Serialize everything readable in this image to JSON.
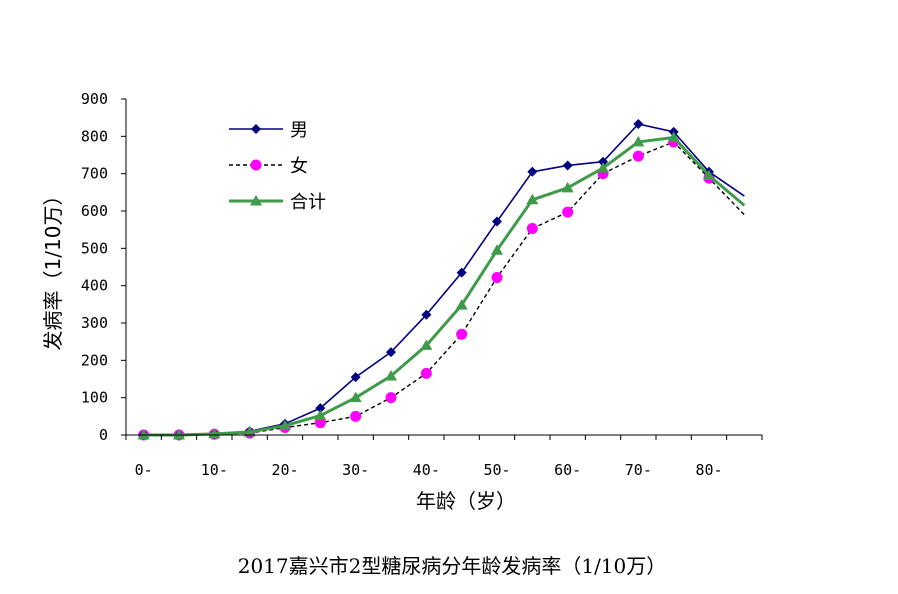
{
  "chart_data": {
    "type": "line",
    "title": "",
    "caption": "2017嘉兴市2型糖尿病分年龄发病率（1/10万）",
    "xlabel": "年龄（岁）",
    "ylabel": "发病率（1/10万）",
    "ylim": [
      0,
      900
    ],
    "yticks": [
      "0",
      "100",
      "200",
      "300",
      "400",
      "500",
      "600",
      "700",
      "800",
      "900"
    ],
    "x": [
      "0-",
      "5-",
      "10-",
      "15-",
      "20-",
      "25-",
      "30-",
      "35-",
      "40-",
      "45-",
      "50-",
      "55-",
      "60-",
      "65-",
      "70-",
      "75-",
      "80-",
      "85-"
    ],
    "xtick_labels": [
      "0-",
      "10-",
      "20-",
      "30-",
      "40-",
      "50-",
      "60-",
      "70-",
      "80-"
    ],
    "legend_position": "top-left",
    "grid": false,
    "series": [
      {
        "name": "男",
        "color": "#000080",
        "marker": "diamond",
        "line": "solid",
        "values": [
          0,
          0,
          3,
          10,
          30,
          72,
          155,
          222,
          322,
          435,
          572,
          705,
          722,
          732,
          833,
          812,
          705,
          640
        ]
      },
      {
        "name": "女",
        "color": "#000000",
        "marker_color": "#ff00ff",
        "marker": "circle",
        "line": "dashed",
        "values": [
          0,
          0,
          2,
          5,
          20,
          33,
          50,
          100,
          165,
          270,
          422,
          553,
          597,
          700,
          747,
          785,
          688,
          590
        ]
      },
      {
        "name": "合计",
        "color": "#3f9a4a",
        "marker": "triangle",
        "line": "solid",
        "values": [
          0,
          0,
          3,
          8,
          25,
          52,
          100,
          158,
          240,
          348,
          495,
          630,
          662,
          715,
          785,
          797,
          695,
          615
        ]
      }
    ]
  }
}
